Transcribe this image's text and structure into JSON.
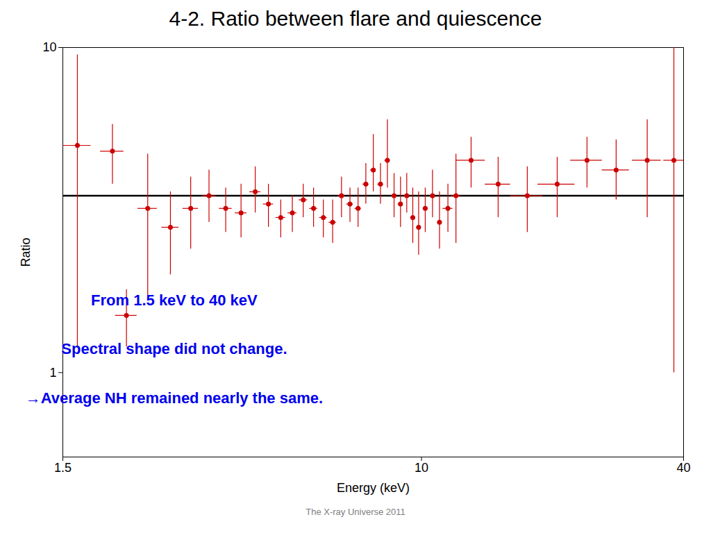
{
  "chart_data": {
    "type": "scatter",
    "title": "4-2. Ratio between flare and quiescence",
    "subtitle": "The X-ray Universe 2011",
    "x_label": "Energy (keV)",
    "y_label": "Ratio",
    "log": true,
    "grid": false,
    "marker": "circle",
    "color": "#cc0000",
    "xlim": [
      1.5,
      40
    ],
    "ylim": [
      0.55,
      10
    ],
    "xticks": [
      1.5,
      10,
      40
    ],
    "yticks": [
      1,
      10
    ],
    "reference_y": 3.5,
    "annotations": [
      {
        "text": "From 1.5 keV to 40 keV",
        "color": "#0000ee"
      },
      {
        "text": "Spectral shape did not change.",
        "color": "#0000ee"
      },
      {
        "text": "→Average NH remained nearly the same.",
        "color": "#0000ee"
      }
    ],
    "x": [
      1.62,
      1.95,
      2.1,
      2.35,
      2.65,
      2.95,
      3.25,
      3.55,
      3.85,
      4.15,
      4.45,
      4.75,
      5.05,
      5.35,
      5.65,
      5.95,
      6.25,
      6.55,
      6.85,
      7.15,
      7.45,
      7.75,
      8.05,
      8.35,
      8.65,
      8.95,
      9.25,
      9.55,
      9.85,
      10.2,
      10.6,
      11.0,
      11.5,
      12.0,
      13.0,
      15.0,
      17.5,
      20.5,
      24.0,
      28.0,
      33.0,
      38.0
    ],
    "values": [
      5.0,
      4.8,
      1.5,
      3.2,
      2.8,
      3.2,
      3.5,
      3.2,
      3.1,
      3.6,
      3.3,
      3.0,
      3.1,
      3.4,
      3.2,
      3.0,
      2.9,
      3.5,
      3.3,
      3.2,
      3.8,
      4.2,
      3.8,
      4.5,
      3.5,
      3.3,
      3.5,
      3.0,
      2.8,
      3.2,
      3.5,
      2.9,
      3.2,
      3.5,
      4.5,
      3.8,
      3.5,
      3.8,
      4.5,
      4.2,
      4.5,
      4.5
    ],
    "xerr": [
      0.12,
      0.12,
      0.12,
      0.12,
      0.12,
      0.12,
      0.12,
      0.12,
      0.12,
      0.12,
      0.12,
      0.12,
      0.12,
      0.12,
      0.12,
      0.12,
      0.12,
      0.12,
      0.12,
      0.12,
      0.12,
      0.12,
      0.12,
      0.12,
      0.12,
      0.12,
      0.12,
      0.12,
      0.12,
      0.12,
      0.12,
      0.12,
      0.3,
      0.3,
      1.0,
      1.0,
      1.5,
      2.0,
      2.0,
      2.0,
      2.5,
      2.0
    ],
    "yerr_lo": [
      3.8,
      1.0,
      0.3,
      1.5,
      0.8,
      0.8,
      0.6,
      0.5,
      0.5,
      0.5,
      0.5,
      0.4,
      0.4,
      0.4,
      0.4,
      0.4,
      0.4,
      0.5,
      0.4,
      0.4,
      0.5,
      0.6,
      0.5,
      0.8,
      0.5,
      0.5,
      0.4,
      0.5,
      0.5,
      0.5,
      0.5,
      0.5,
      0.5,
      1.0,
      0.8,
      0.8,
      0.8,
      0.8,
      0.8,
      0.8,
      1.5,
      3.5
    ],
    "yerr_hi": [
      4.5,
      1.0,
      0.3,
      1.5,
      0.8,
      0.8,
      0.7,
      0.5,
      0.7,
      0.7,
      0.5,
      0.4,
      0.4,
      0.4,
      0.5,
      0.4,
      0.5,
      0.5,
      0.4,
      0.5,
      0.6,
      1.2,
      0.6,
      1.5,
      0.6,
      0.7,
      0.6,
      0.7,
      0.8,
      0.5,
      0.7,
      0.7,
      0.6,
      1.2,
      0.8,
      0.8,
      0.8,
      0.8,
      0.8,
      1.0,
      1.5,
      5.5
    ]
  }
}
